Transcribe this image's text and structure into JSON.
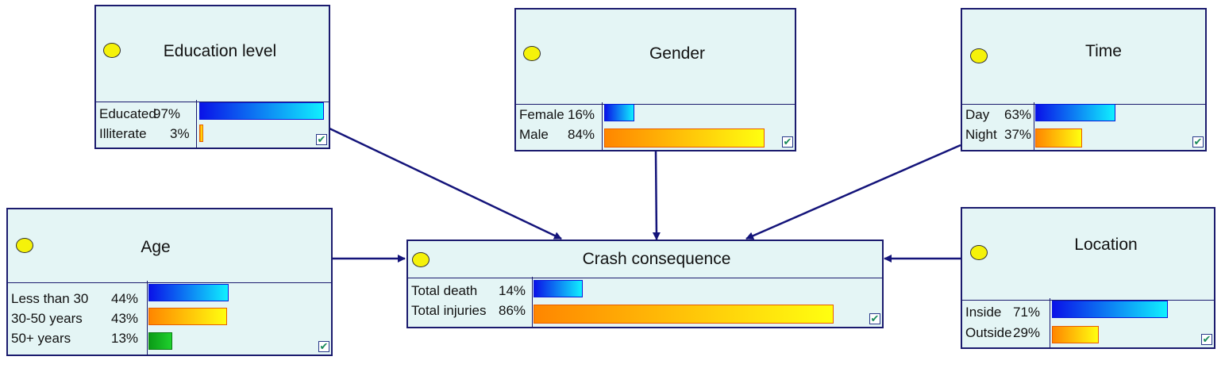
{
  "nodes": [
    {
      "id": "education",
      "title": "Education  level",
      "states": [
        {
          "label": "Educated",
          "percent": "97%",
          "value": 97,
          "color": "blue"
        },
        {
          "label": "Illiterate",
          "percent": "3%",
          "value": 3,
          "color": "orange"
        }
      ]
    },
    {
      "id": "gender",
      "title": "Gender",
      "states": [
        {
          "label": "Female",
          "percent": "16%",
          "value": 16,
          "color": "blue"
        },
        {
          "label": "Male",
          "percent": "84%",
          "value": 84,
          "color": "orange"
        }
      ]
    },
    {
      "id": "time",
      "title": "Time",
      "states": [
        {
          "label": "Day",
          "percent": "63%",
          "value": 63,
          "color": "blue"
        },
        {
          "label": "Night",
          "percent": "37%",
          "value": 37,
          "color": "orange"
        }
      ]
    },
    {
      "id": "age",
      "title": "Age",
      "states": [
        {
          "label": "Less than 30",
          "percent": "44%",
          "value": 44,
          "color": "blue"
        },
        {
          "label": "30-50 years",
          "percent": "43%",
          "value": 43,
          "color": "orange"
        },
        {
          "label": "50+ years",
          "percent": "13%",
          "value": 13,
          "color": "green"
        }
      ]
    },
    {
      "id": "crash",
      "title": "Crash consequence",
      "states": [
        {
          "label": "Total death",
          "percent": "14%",
          "value": 14,
          "color": "blue"
        },
        {
          "label": "Total injuries",
          "percent": "86%",
          "value": 86,
          "color": "orange"
        }
      ]
    },
    {
      "id": "location",
      "title": "Location",
      "states": [
        {
          "label": "Inside",
          "percent": "71%",
          "value": 71,
          "color": "blue"
        },
        {
          "label": "Outside",
          "percent": "29%",
          "value": 29,
          "color": "orange"
        }
      ]
    }
  ],
  "edges": [
    {
      "from": "education",
      "to": "crash"
    },
    {
      "from": "gender",
      "to": "crash"
    },
    {
      "from": "time",
      "to": "crash"
    },
    {
      "from": "age",
      "to": "crash"
    },
    {
      "from": "location",
      "to": "crash"
    }
  ],
  "colors": {
    "node_fill": "#e4f5f5",
    "node_border": "#1b1b6e",
    "edge": "#14147a",
    "indicator": "#f5f20a"
  }
}
